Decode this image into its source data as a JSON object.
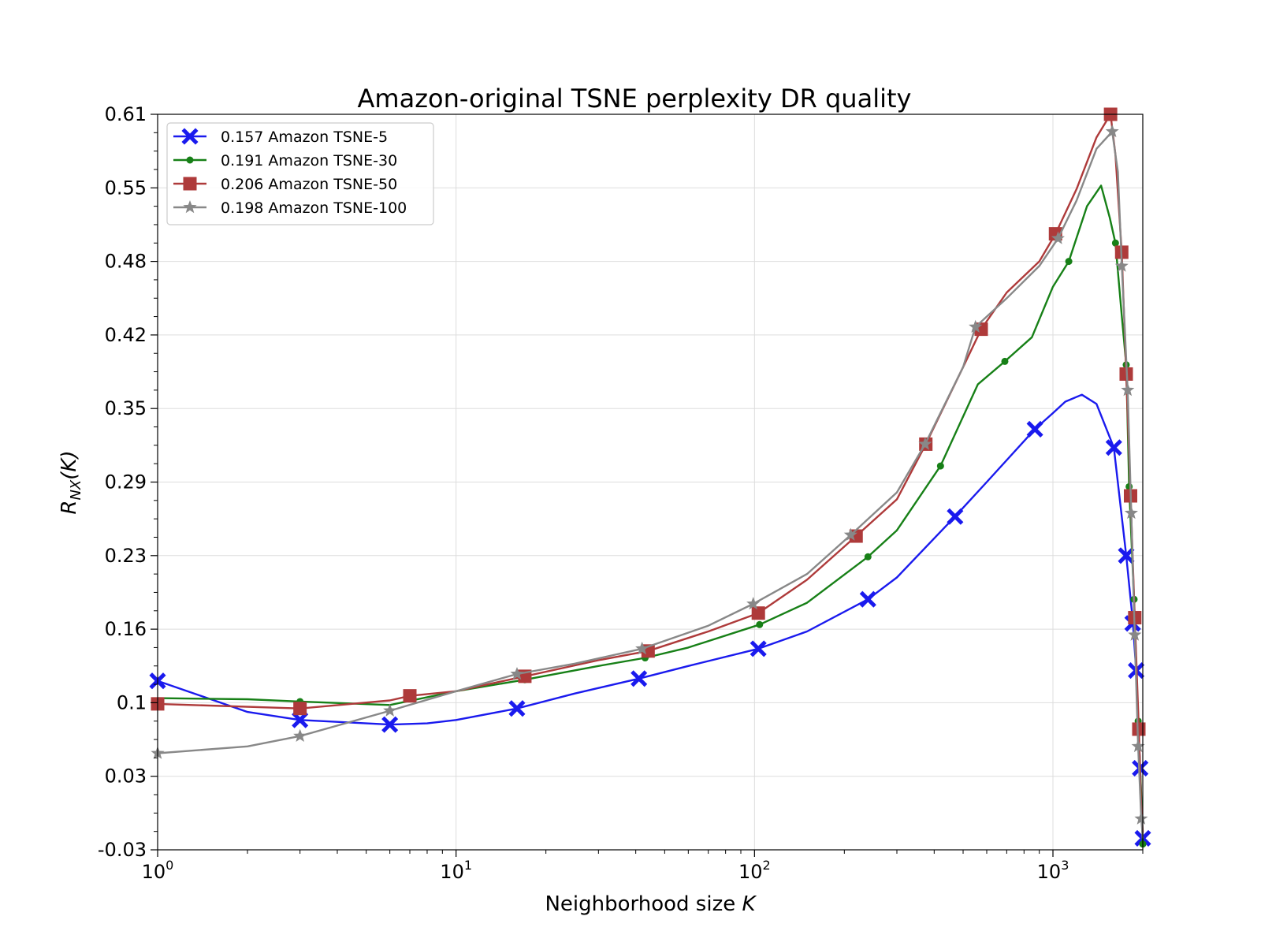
{
  "chart_data": {
    "type": "line",
    "title": "Amazon-original TSNE perplexity DR quality",
    "xlabel": "Neighborhood size",
    "xlabel_var": "K",
    "ylabel_main": "R",
    "ylabel_sub": "NX",
    "ylabel_rest": "(K)",
    "x_scale": "log",
    "xlim": [
      1,
      2000
    ],
    "ylim": [
      -0.03,
      0.61
    ],
    "x_ticks": [
      {
        "value": 1,
        "base": "10",
        "exp": "0"
      },
      {
        "value": 10,
        "base": "10",
        "exp": "1"
      },
      {
        "value": 100,
        "base": "10",
        "exp": "2"
      },
      {
        "value": 1000,
        "base": "10",
        "exp": "3"
      }
    ],
    "y_ticks": [
      {
        "value": 0.61,
        "label": "0.61"
      },
      {
        "value": 0.546,
        "label": "0.55"
      },
      {
        "value": 0.482,
        "label": "0.48"
      },
      {
        "value": 0.418,
        "label": "0.42"
      },
      {
        "value": 0.354,
        "label": "0.35"
      },
      {
        "value": 0.29,
        "label": "0.29"
      },
      {
        "value": 0.226,
        "label": "0.23"
      },
      {
        "value": 0.162,
        "label": "0.16"
      },
      {
        "value": 0.098,
        "label": "0.1"
      },
      {
        "value": 0.034,
        "label": "0.03"
      },
      {
        "value": -0.03,
        "label": "-0.03"
      }
    ],
    "grid": true,
    "legend_position": "top-left",
    "series": [
      {
        "name": "0.157 Amazon TSNE-5",
        "color": "#1a1aee",
        "marker": "x",
        "line": [
          [
            1,
            0.117
          ],
          [
            2,
            0.09
          ],
          [
            3,
            0.083
          ],
          [
            6,
            0.079
          ],
          [
            8,
            0.08
          ],
          [
            10,
            0.083
          ],
          [
            16,
            0.093
          ],
          [
            25,
            0.106
          ],
          [
            41,
            0.119
          ],
          [
            60,
            0.13
          ],
          [
            103,
            0.145
          ],
          [
            150,
            0.16
          ],
          [
            240,
            0.188
          ],
          [
            300,
            0.207
          ],
          [
            470,
            0.26
          ],
          [
            600,
            0.29
          ],
          [
            870,
            0.336
          ],
          [
            1000,
            0.35
          ],
          [
            1100,
            0.36
          ],
          [
            1250,
            0.366
          ],
          [
            1400,
            0.358
          ],
          [
            1600,
            0.32
          ],
          [
            1700,
            0.26
          ],
          [
            1760,
            0.226
          ],
          [
            1850,
            0.17
          ],
          [
            1900,
            0.126
          ],
          [
            1960,
            0.04
          ],
          [
            1990,
            -0.01
          ],
          [
            2000,
            -0.02
          ]
        ],
        "markers": [
          [
            1,
            0.117
          ],
          [
            3,
            0.083
          ],
          [
            6,
            0.079
          ],
          [
            16,
            0.093
          ],
          [
            41,
            0.119
          ],
          [
            103,
            0.145
          ],
          [
            240,
            0.188
          ],
          [
            470,
            0.26
          ],
          [
            870,
            0.336
          ],
          [
            1600,
            0.32
          ],
          [
            1760,
            0.226
          ],
          [
            1850,
            0.167
          ],
          [
            1900,
            0.126
          ],
          [
            1960,
            0.041
          ],
          [
            2000,
            -0.02
          ]
        ]
      },
      {
        "name": "0.191 Amazon TSNE-30",
        "color": "#178017",
        "marker": "dot",
        "line": [
          [
            1,
            0.102
          ],
          [
            2,
            0.101
          ],
          [
            3,
            0.099
          ],
          [
            6,
            0.096
          ],
          [
            10,
            0.108
          ],
          [
            17,
            0.118
          ],
          [
            30,
            0.13
          ],
          [
            43,
            0.137
          ],
          [
            60,
            0.146
          ],
          [
            104,
            0.166
          ],
          [
            150,
            0.185
          ],
          [
            240,
            0.225
          ],
          [
            300,
            0.248
          ],
          [
            420,
            0.304
          ],
          [
            560,
            0.375
          ],
          [
            690,
            0.395
          ],
          [
            850,
            0.416
          ],
          [
            1000,
            0.46
          ],
          [
            1130,
            0.482
          ],
          [
            1300,
            0.53
          ],
          [
            1450,
            0.548
          ],
          [
            1550,
            0.52
          ],
          [
            1620,
            0.498
          ],
          [
            1700,
            0.435
          ],
          [
            1760,
            0.392
          ],
          [
            1800,
            0.286
          ],
          [
            1870,
            0.188
          ],
          [
            1930,
            0.082
          ],
          [
            1975,
            0.02
          ],
          [
            2000,
            -0.025
          ]
        ],
        "markers": [
          [
            3,
            0.099
          ],
          [
            17,
            0.118
          ],
          [
            43,
            0.137
          ],
          [
            104,
            0.166
          ],
          [
            240,
            0.225
          ],
          [
            420,
            0.304
          ],
          [
            690,
            0.395
          ],
          [
            1130,
            0.482
          ],
          [
            1620,
            0.498
          ],
          [
            1760,
            0.392
          ],
          [
            1800,
            0.286
          ],
          [
            1870,
            0.188
          ],
          [
            1930,
            0.082
          ],
          [
            2000,
            -0.025
          ]
        ]
      },
      {
        "name": "0.206 Amazon TSNE-50",
        "color": "#ae3a3a",
        "marker": "square",
        "line": [
          [
            1,
            0.097
          ],
          [
            3,
            0.093
          ],
          [
            6,
            0.1
          ],
          [
            7,
            0.104
          ],
          [
            10,
            0.108
          ],
          [
            17,
            0.121
          ],
          [
            30,
            0.135
          ],
          [
            44,
            0.143
          ],
          [
            70,
            0.16
          ],
          [
            103,
            0.176
          ],
          [
            150,
            0.205
          ],
          [
            219,
            0.243
          ],
          [
            300,
            0.275
          ],
          [
            375,
            0.323
          ],
          [
            500,
            0.39
          ],
          [
            575,
            0.423
          ],
          [
            700,
            0.455
          ],
          [
            900,
            0.482
          ],
          [
            1020,
            0.506
          ],
          [
            1200,
            0.545
          ],
          [
            1400,
            0.59
          ],
          [
            1560,
            0.61
          ],
          [
            1620,
            0.575
          ],
          [
            1700,
            0.49
          ],
          [
            1760,
            0.384
          ],
          [
            1820,
            0.278
          ],
          [
            1880,
            0.172
          ],
          [
            1940,
            0.075
          ],
          [
            1975,
            0.01
          ],
          [
            2000,
            -0.015
          ]
        ],
        "markers": [
          [
            1,
            0.097
          ],
          [
            3,
            0.093
          ],
          [
            7,
            0.104
          ],
          [
            17,
            0.121
          ],
          [
            44,
            0.143
          ],
          [
            103,
            0.176
          ],
          [
            219,
            0.243
          ],
          [
            375,
            0.323
          ],
          [
            575,
            0.423
          ],
          [
            1020,
            0.506
          ],
          [
            1560,
            0.61
          ],
          [
            1700,
            0.49
          ],
          [
            1760,
            0.384
          ],
          [
            1820,
            0.278
          ],
          [
            1880,
            0.172
          ],
          [
            1940,
            0.075
          ]
        ]
      },
      {
        "name": "0.198 Amazon TSNE-100",
        "color": "#888888",
        "marker": "star",
        "line": [
          [
            1,
            0.054
          ],
          [
            2,
            0.06
          ],
          [
            3,
            0.069
          ],
          [
            6,
            0.091
          ],
          [
            10,
            0.108
          ],
          [
            16,
            0.123
          ],
          [
            25,
            0.132
          ],
          [
            42,
            0.145
          ],
          [
            70,
            0.165
          ],
          [
            99,
            0.184
          ],
          [
            150,
            0.21
          ],
          [
            210,
            0.244
          ],
          [
            300,
            0.281
          ],
          [
            373,
            0.323
          ],
          [
            500,
            0.39
          ],
          [
            550,
            0.425
          ],
          [
            700,
            0.45
          ],
          [
            900,
            0.478
          ],
          [
            1040,
            0.502
          ],
          [
            1200,
            0.535
          ],
          [
            1400,
            0.58
          ],
          [
            1580,
            0.595
          ],
          [
            1650,
            0.56
          ],
          [
            1700,
            0.48
          ],
          [
            1780,
            0.37
          ],
          [
            1830,
            0.263
          ],
          [
            1880,
            0.157
          ],
          [
            1930,
            0.06
          ],
          [
            1975,
            0.0
          ],
          [
            2000,
            -0.02
          ]
        ],
        "markers": [
          [
            1,
            0.054
          ],
          [
            3,
            0.069
          ],
          [
            6,
            0.091
          ],
          [
            16,
            0.123
          ],
          [
            42,
            0.145
          ],
          [
            99,
            0.184
          ],
          [
            210,
            0.244
          ],
          [
            373,
            0.323
          ],
          [
            550,
            0.425
          ],
          [
            1040,
            0.502
          ],
          [
            1580,
            0.595
          ],
          [
            1700,
            0.478
          ],
          [
            1780,
            0.37
          ],
          [
            1830,
            0.263
          ],
          [
            1880,
            0.157
          ],
          [
            1930,
            0.06
          ],
          [
            1975,
            -0.003
          ]
        ]
      }
    ]
  }
}
